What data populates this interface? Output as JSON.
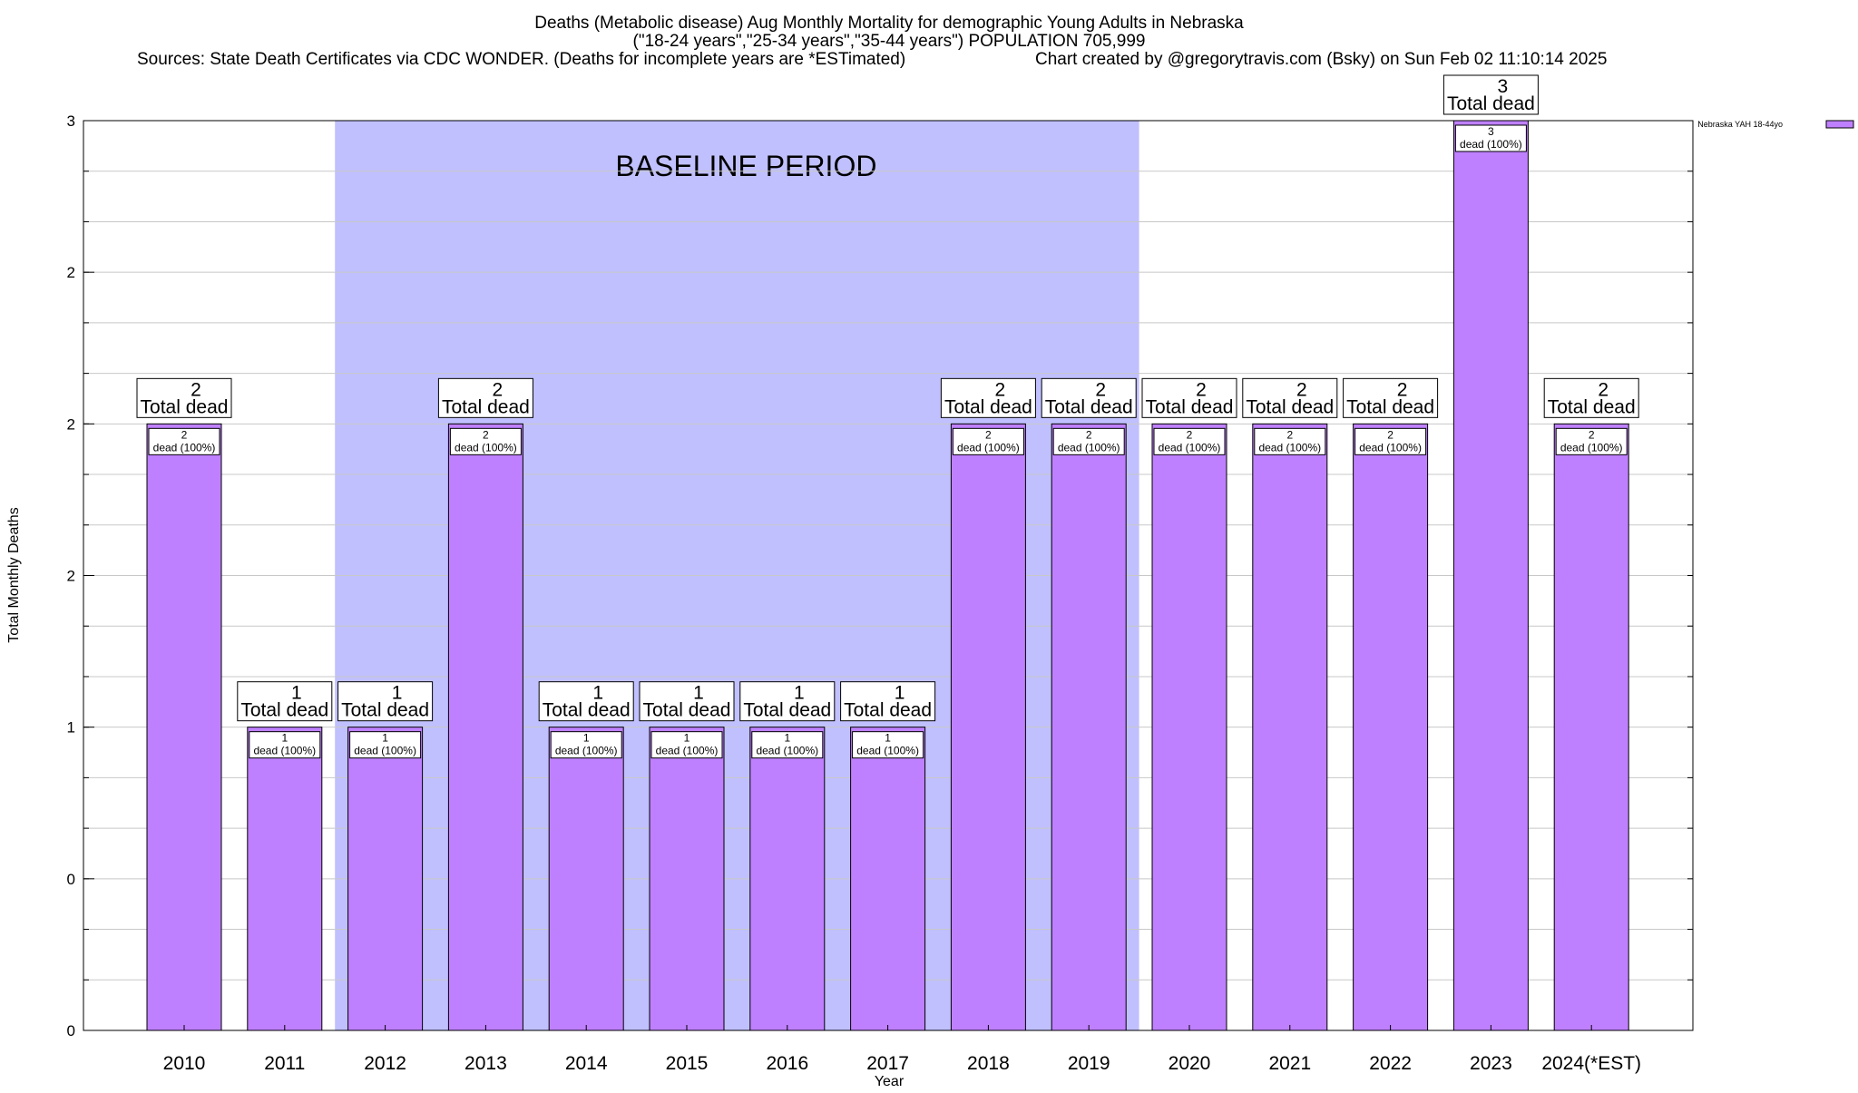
{
  "chart_data": {
    "type": "bar",
    "title": "Deaths (Metabolic disease) Aug Monthly Mortality for demographic Young Adults in Nebraska",
    "subtitle": "(\"18-24 years\",\"25-34 years\",\"35-44 years\") POPULATION 705,999",
    "source_line": "Sources: State Death Certificates via CDC WONDER. (Deaths for incomplete years are *ESTimated)",
    "credit_line": "Chart created by @gregorytravis.com (Bsky) on Sun Feb 02 11:10:14 2025",
    "xlabel": "Year",
    "ylabel": "Total Monthly Deaths",
    "ylim": [
      0,
      3
    ],
    "y_ticks": [
      0,
      0.5,
      1,
      1.5,
      2,
      2.5,
      3
    ],
    "y_tick_labels": [
      "0",
      "0",
      "1",
      "2",
      "2",
      "2",
      "3"
    ],
    "grid": true,
    "categories": [
      "2010",
      "2011",
      "2012",
      "2013",
      "2014",
      "2015",
      "2016",
      "2017",
      "2018",
      "2019",
      "2020",
      "2021",
      "2022",
      "2023",
      "2024(*EST)"
    ],
    "series": [
      {
        "name": "Nebraska YAH 18-44yo",
        "color": "#bf80ff",
        "values": [
          2,
          1,
          1,
          2,
          1,
          1,
          1,
          1,
          2,
          2,
          2,
          2,
          2,
          3,
          2
        ]
      }
    ],
    "legend_position": "top-right",
    "baseline": {
      "label": "BASELINE PERIOD",
      "start": "2012",
      "end": "2019",
      "color": "#c0c0ff"
    },
    "bar_top_caption": "Total dead",
    "bar_inner_caption": "dead (100%)"
  }
}
